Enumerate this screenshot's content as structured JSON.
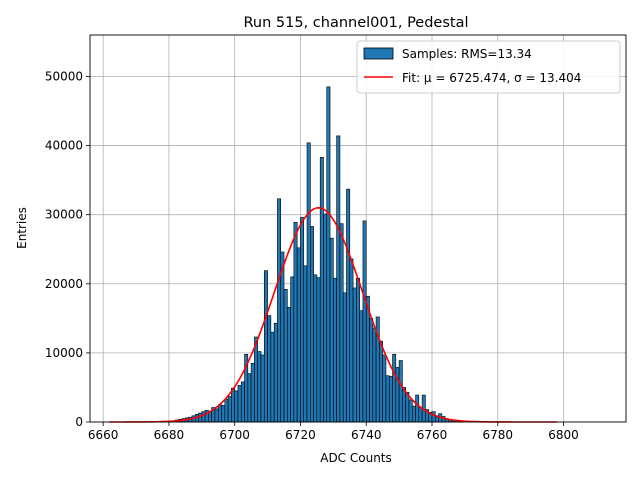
{
  "chart_data": {
    "type": "bar",
    "title": "Run 515, channel001, Pedestal",
    "xlabel": "ADC Counts",
    "ylabel": "Entries",
    "xlim": [
      6656,
      6819
    ],
    "ylim": [
      0,
      56000
    ],
    "x_ticks": [
      6660,
      6680,
      6700,
      6720,
      6740,
      6760,
      6780,
      6800
    ],
    "y_ticks": [
      0,
      10000,
      20000,
      30000,
      40000,
      50000
    ],
    "grid": true,
    "legend_position": "top-right",
    "colors": {
      "bar": "#1f77b4",
      "bar_edge": "#000000",
      "fit": "#ff0000",
      "grid": "#b0b0b0"
    },
    "series": [
      {
        "name": "Samples: RMS=13.34",
        "kind": "histogram",
        "bin_width": 1,
        "bins": [
          [
            6681,
            200
          ],
          [
            6682,
            300
          ],
          [
            6683,
            400
          ],
          [
            6684,
            500
          ],
          [
            6685,
            600
          ],
          [
            6686,
            700
          ],
          [
            6687,
            900
          ],
          [
            6688,
            1100
          ],
          [
            6689,
            1300
          ],
          [
            6690,
            1500
          ],
          [
            6691,
            1700
          ],
          [
            6692,
            1500
          ],
          [
            6693,
            2100
          ],
          [
            6694,
            1900
          ],
          [
            6695,
            2500
          ],
          [
            6696,
            2400
          ],
          [
            6697,
            3300
          ],
          [
            6698,
            3700
          ],
          [
            6699,
            4900
          ],
          [
            6700,
            4500
          ],
          [
            6701,
            5300
          ],
          [
            6702,
            5800
          ],
          [
            6703,
            9800
          ],
          [
            6704,
            7000
          ],
          [
            6705,
            8500
          ],
          [
            6706,
            12300
          ],
          [
            6707,
            10200
          ],
          [
            6708,
            9700
          ],
          [
            6709,
            21900
          ],
          [
            6710,
            15400
          ],
          [
            6711,
            13000
          ],
          [
            6712,
            14300
          ],
          [
            6713,
            32300
          ],
          [
            6714,
            24600
          ],
          [
            6715,
            19200
          ],
          [
            6716,
            16600
          ],
          [
            6717,
            21000
          ],
          [
            6718,
            28900
          ],
          [
            6719,
            25200
          ],
          [
            6720,
            29600
          ],
          [
            6721,
            22600
          ],
          [
            6722,
            40400
          ],
          [
            6723,
            28300
          ],
          [
            6724,
            21300
          ],
          [
            6725,
            20900
          ],
          [
            6726,
            38300
          ],
          [
            6727,
            30100
          ],
          [
            6728,
            48500
          ],
          [
            6729,
            26600
          ],
          [
            6730,
            20800
          ],
          [
            6731,
            41400
          ],
          [
            6732,
            28700
          ],
          [
            6733,
            18700
          ],
          [
            6734,
            33700
          ],
          [
            6735,
            23600
          ],
          [
            6736,
            19400
          ],
          [
            6737,
            20800
          ],
          [
            6738,
            16100
          ],
          [
            6739,
            29100
          ],
          [
            6740,
            18200
          ],
          [
            6741,
            15000
          ],
          [
            6742,
            13600
          ],
          [
            6743,
            15200
          ],
          [
            6744,
            11700
          ],
          [
            6745,
            9700
          ],
          [
            6746,
            6700
          ],
          [
            6747,
            6600
          ],
          [
            6748,
            9800
          ],
          [
            6749,
            7900
          ],
          [
            6750,
            8900
          ],
          [
            6751,
            5000
          ],
          [
            6752,
            4300
          ],
          [
            6753,
            3200
          ],
          [
            6754,
            2300
          ],
          [
            6755,
            3900
          ],
          [
            6756,
            2100
          ],
          [
            6757,
            3900
          ],
          [
            6758,
            1800
          ],
          [
            6759,
            1400
          ],
          [
            6760,
            1500
          ],
          [
            6761,
            900
          ],
          [
            6762,
            1200
          ],
          [
            6763,
            800
          ],
          [
            6764,
            500
          ],
          [
            6765,
            300
          ],
          [
            6766,
            300
          ],
          [
            6767,
            200
          ],
          [
            6768,
            150
          ]
        ]
      },
      {
        "name": "Fit: μ = 6725.474, σ = 13.404",
        "kind": "gaussian_fit",
        "mu": 6725.474,
        "sigma": 13.404,
        "amplitude": 31000,
        "x_range": [
          6662,
          6798
        ]
      }
    ]
  }
}
